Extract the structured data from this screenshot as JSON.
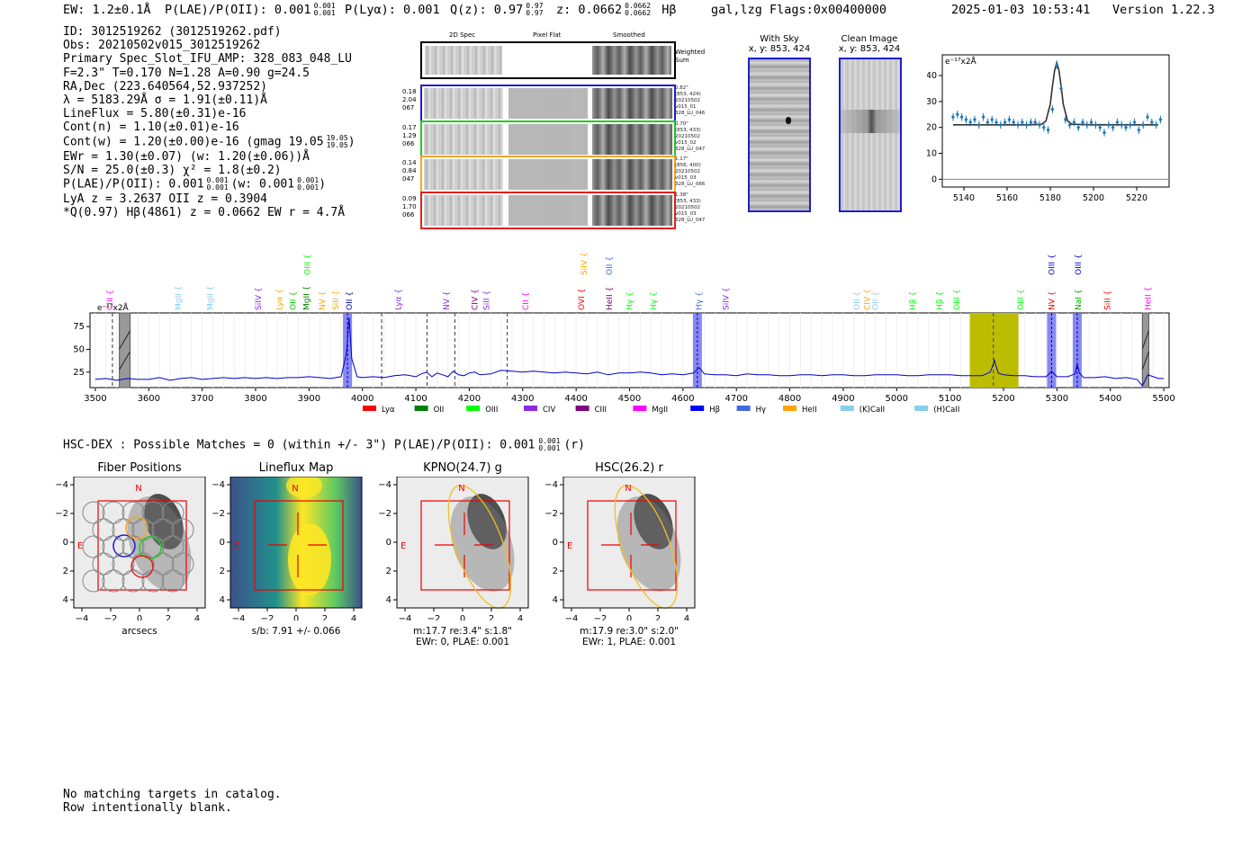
{
  "header": {
    "ew": "EW: 1.2±0.1Å",
    "plae_label": "P(LAE)/P(OII): 0.001",
    "plae_up": "0.001",
    "plae_dn": "0.001",
    "plya": "P(Lyα): 0.001",
    "qz_label": "Q(z): 0.97",
    "qz_up": "0.97",
    "qz_dn": "0.97",
    "z_label": "z: 0.0662",
    "z_up": "0.0662",
    "z_dn": "0.0662",
    "line": "Hβ",
    "flags_text": "gal,lzg  Flags:0x00400000",
    "timestamp": "2025-01-03 10:53:41",
    "version": "Version 1.22.3"
  },
  "info": {
    "lines": [
      "ID: 3012519262 (3012519262.pdf)",
      "Obs: 20210502v015_3012519262",
      "Primary Spec_Slot_IFU_AMP: 328_083_048_LU",
      "F=2.3\"  T=0.170  N=1.28  A=0.90  g=24.5",
      "RA,Dec (223.640564,52.937252)",
      "λ = 5183.29Å  σ = 1.91(±0.11)Å",
      "LineFlux = 5.80(±0.31)e-16",
      "Cont(n) = 1.10(±0.01)e-16"
    ],
    "contw": "Cont(w) = 1.20(±0.00)e-16 (gmag 19.05",
    "contw_up": "19.05",
    "contw_dn": "19.05",
    "contw_end": ")",
    "ewr": "EWr = 1.30(±0.07) (w: 1.20(±0.06))Å",
    "sn": "S/N = 25.0(±0.3)  χ² = 1.8(±0.2)",
    "plae2": "P(LAE)/P(OII): 0.001",
    "plae2_up": "0.001",
    "plae2_dn": "0.001",
    "plae2_w": "(w: 0.001",
    "plae2_wup": "0.001",
    "plae2_wdn": "0.001",
    "plae2_end": ")",
    "lya_z": "LyA z = 3.2637   OII z = 0.3904",
    "q_line": "*Q(0.97) Hβ(4861) z = 0.0662  EW r = 4.7Å"
  },
  "cutouts": {
    "col_2d": "2D Spec",
    "col_flat": "Pixel Flat",
    "col_smooth": "Smoothed",
    "weighted": "Weighted\nSum",
    "rows": [
      {
        "a": "0.18",
        "b": "2.04",
        "c": "067",
        "color": "#1f1fcc",
        "side": [
          "0.82\"",
          "(853, 424)",
          "20210502",
          "v015_01",
          "328_LU_046"
        ]
      },
      {
        "a": "0.17",
        "b": "1.29",
        "c": "066",
        "color": "#22cc22",
        "side": [
          "0.70\"",
          "(853, 433)",
          "20210502",
          "v015_02",
          "328_LU_047"
        ]
      },
      {
        "a": "0.14",
        "b": "0.84",
        "c": "047",
        "color": "#f5a623",
        "side": [
          "1.17\"",
          "(856, 400)",
          "20210502",
          "v015_03",
          "328_LU_066"
        ]
      },
      {
        "a": "0.09",
        "b": "1.70",
        "c": "066",
        "color": "#e02020",
        "side": [
          "1.38\"",
          "(853, 433)",
          "20210502",
          "v015_03",
          "328_LU_047"
        ]
      }
    ]
  },
  "sky": {
    "with_sky_title": "With Sky",
    "with_sky_xy": "x, y: 853, 424",
    "clean_title": "Clean Image",
    "clean_xy": "x, y: 853, 424"
  },
  "zoom": {
    "ylabel": "e⁻¹⁷x2Å",
    "xticks": [
      "5140",
      "5160",
      "5180",
      "5200",
      "5220"
    ],
    "yticks": [
      "0",
      "10",
      "20",
      "30",
      "40"
    ]
  },
  "full_spec": {
    "ylabel": "e⁻¹⁷x2Å",
    "xticks": [
      "3500",
      "3600",
      "3700",
      "3800",
      "3900",
      "4000",
      "4100",
      "4200",
      "4300",
      "4400",
      "4500",
      "4600",
      "4700",
      "4800",
      "4900",
      "5000",
      "5100",
      "5200",
      "5300",
      "5400",
      "5500"
    ],
    "yticks": [
      "25",
      "50",
      "75"
    ],
    "legend": [
      {
        "label": "Lyα",
        "color": "#ff0000"
      },
      {
        "label": "OII",
        "color": "#008000"
      },
      {
        "label": "OIII",
        "color": "#00ff00"
      },
      {
        "label": "CIV",
        "color": "#8a2be2"
      },
      {
        "label": "CIII",
        "color": "#800080"
      },
      {
        "label": "MgII",
        "color": "#ff00ff"
      },
      {
        "label": "Hβ",
        "color": "#0000ff"
      },
      {
        "label": "Hγ",
        "color": "#4169e1"
      },
      {
        "label": "HeII",
        "color": "#ffa500"
      },
      {
        "label": "(K)CaII",
        "color": "#87ceeb"
      },
      {
        "label": "(H)CaII",
        "color": "#87ceeb"
      }
    ],
    "lines": [
      {
        "label": "CIII",
        "x": 3527,
        "color": "#ff00ff",
        "row": 1
      },
      {
        "label": "MgII",
        "x": 3655,
        "color": "#87ceeb",
        "row": 1
      },
      {
        "label": "MgII",
        "x": 3715,
        "color": "#87ceeb",
        "row": 1
      },
      {
        "label": "SiIV",
        "x": 3805,
        "color": "#8a2be2",
        "row": 1
      },
      {
        "label": "Lyα",
        "x": 3845,
        "color": "#ffa500",
        "row": 1
      },
      {
        "label": "OII",
        "x": 3870,
        "color": "#00cc00",
        "row": 1
      },
      {
        "label": "MgII",
        "x": 3895,
        "color": "#008000",
        "row": 1
      },
      {
        "label": "NV",
        "x": 3925,
        "color": "#ffa500",
        "row": 1
      },
      {
        "label": "SiII",
        "x": 3950,
        "color": "#ffa500",
        "row": 1
      },
      {
        "label": "OIII",
        "x": 3897,
        "color": "#00ff00",
        "row": 0
      },
      {
        "label": "OII",
        "x": 3975,
        "color": "#0000cc",
        "row": 1
      },
      {
        "label": "Lyα",
        "x": 4067,
        "color": "#8a2be2",
        "row": 1
      },
      {
        "label": "NV",
        "x": 4157,
        "color": "#8a2be2",
        "row": 1
      },
      {
        "label": "CIV",
        "x": 4210,
        "color": "#800080",
        "row": 1
      },
      {
        "label": "SiII",
        "x": 4232,
        "color": "#8a2be2",
        "row": 1
      },
      {
        "label": "CII",
        "x": 4305,
        "color": "#ff00ff",
        "row": 1
      },
      {
        "label": "OVI",
        "x": 4410,
        "color": "#ff0000",
        "row": 1
      },
      {
        "label": "SiIV",
        "x": 4415,
        "color": "#ffa500",
        "row": 0
      },
      {
        "label": "HeII",
        "x": 4462,
        "color": "#800080",
        "row": 1
      },
      {
        "label": "OII",
        "x": 4462,
        "color": "#4169e1",
        "row": 0
      },
      {
        "label": "Hγ",
        "x": 4500,
        "color": "#00ff00",
        "row": 1
      },
      {
        "label": "Hγ",
        "x": 4545,
        "color": "#00ff00",
        "row": 1
      },
      {
        "label": "Hγ",
        "x": 4630,
        "color": "#4169e1",
        "row": 1
      },
      {
        "label": "SiIV",
        "x": 4680,
        "color": "#8a2be2",
        "row": 1
      },
      {
        "label": "OII",
        "x": 4925,
        "color": "#87ceeb",
        "row": 1
      },
      {
        "label": "CIV",
        "x": 4945,
        "color": "#ffa500",
        "row": 1
      },
      {
        "label": "OII",
        "x": 4960,
        "color": "#87ceeb",
        "row": 1
      },
      {
        "label": "Hβ",
        "x": 5030,
        "color": "#00ff00",
        "row": 1
      },
      {
        "label": "Hβ",
        "x": 5080,
        "color": "#00ff00",
        "row": 1
      },
      {
        "label": "OIII",
        "x": 5112,
        "color": "#00ff00",
        "row": 1
      },
      {
        "label": "OIII",
        "x": 5232,
        "color": "#00ff00",
        "row": 1
      },
      {
        "label": "NV",
        "x": 5290,
        "color": "#ff0000",
        "row": 1
      },
      {
        "label": "NaI",
        "x": 5340,
        "color": "#00aa00",
        "row": 1
      },
      {
        "label": "OIII",
        "x": 5290,
        "color": "#0000cc",
        "row": 0
      },
      {
        "label": "OIII",
        "x": 5340,
        "color": "#0000cc",
        "row": 0
      },
      {
        "label": "SiII",
        "x": 5395,
        "color": "#ff0000",
        "row": 1
      },
      {
        "label": "HeII",
        "x": 5470,
        "color": "#ff00ff",
        "row": 1
      }
    ]
  },
  "hsc": {
    "title": "HSC-DEX : Possible Matches = 0 (within +/- 3\")  P(LAE)/P(OII): 0.001",
    "title_up": "0.001",
    "title_dn": "0.001",
    "title_end": "(r)"
  },
  "thumbs": [
    {
      "title": "Fiber Positions",
      "caption1": "arcsecs",
      "caption2": "",
      "caption3": ""
    },
    {
      "title": "Lineflux Map",
      "caption1": "s/b: 7.91 +/- 0.066",
      "caption2": "",
      "caption3": ""
    },
    {
      "title": "KPNO(24.7) g",
      "caption1": "m:17.7  re:3.4\"  s:1.8\"",
      "caption2": "EWr: 0, PLAE: 0.001",
      "caption3": ""
    },
    {
      "title": "HSC(26.2) r",
      "caption1": "m:17.9  re:3.0\"  s:2.0\"",
      "caption2": "EWr: 1, PLAE: 0.001",
      "caption3": ""
    }
  ],
  "thumb_axis": {
    "ticks": [
      "−4",
      "−2",
      "0",
      "2",
      "4"
    ],
    "n": "N",
    "e": "E"
  },
  "footer": {
    "line1": "No matching targets in catalog.",
    "line2": "Row intentionally blank."
  },
  "chart_data": [
    {
      "type": "line",
      "title": "",
      "xlabel": "",
      "ylabel": "e⁻¹⁷x2Å",
      "xlim": [
        5130,
        5235
      ],
      "ylim": [
        -3,
        48
      ],
      "series": [
        {
          "x": [
            5135,
            5137,
            5139,
            5141,
            5143,
            5145,
            5147,
            5149,
            5151,
            5153,
            5155,
            5157,
            5159,
            5161,
            5163,
            5165,
            5167,
            5169,
            5171,
            5173,
            5175,
            5177,
            5179,
            5181,
            5183,
            5185,
            5187,
            5189,
            5191,
            5193,
            5195,
            5197,
            5199,
            5201,
            5203,
            5205,
            5207,
            5209,
            5211,
            5213,
            5215,
            5217,
            5219,
            5221,
            5223,
            5225,
            5227,
            5229,
            5231
          ],
          "y": [
            24,
            25,
            24,
            23,
            22,
            23,
            21,
            24,
            22,
            23,
            22,
            21,
            22,
            23,
            22,
            21,
            22,
            21,
            22,
            22,
            21,
            20,
            19,
            27,
            44,
            35,
            23,
            21,
            22,
            20,
            22,
            21,
            22,
            21,
            20,
            18,
            21,
            20,
            22,
            21,
            20,
            21,
            22,
            19,
            21,
            24,
            22,
            21,
            23
          ]
        },
        {
          "x": [
            5135,
            5170,
            5176,
            5178,
            5180,
            5181,
            5182,
            5183,
            5184,
            5185,
            5186,
            5188,
            5190,
            5200,
            5230
          ],
          "y": [
            21,
            21,
            21.2,
            22.5,
            29,
            36,
            42,
            45,
            42,
            36,
            29,
            22.5,
            21.2,
            21,
            21
          ]
        }
      ]
    },
    {
      "type": "line",
      "title": "",
      "xlabel": "",
      "ylabel": "e⁻¹⁷x2Å",
      "xlim": [
        3490,
        5510
      ],
      "ylim": [
        8,
        90
      ],
      "series": [
        {
          "x": [
            3500,
            3520,
            3540,
            3560,
            3580,
            3600,
            3620,
            3640,
            3660,
            3680,
            3700,
            3720,
            3740,
            3760,
            3780,
            3800,
            3820,
            3840,
            3860,
            3880,
            3900,
            3920,
            3940,
            3960,
            3970,
            3975,
            3980,
            3990,
            4000,
            4020,
            4040,
            4060,
            4080,
            4100,
            4110,
            4120,
            4130,
            4140,
            4150,
            4160,
            4170,
            4180,
            4190,
            4200,
            4210,
            4220,
            4240,
            4260,
            4280,
            4300,
            4320,
            4340,
            4360,
            4380,
            4400,
            4420,
            4440,
            4460,
            4480,
            4500,
            4520,
            4540,
            4560,
            4580,
            4600,
            4620,
            4630,
            4640,
            4660,
            4680,
            4700,
            4720,
            4740,
            4760,
            4780,
            4800,
            4820,
            4840,
            4860,
            4880,
            4900,
            4920,
            4940,
            4960,
            4980,
            5000,
            5020,
            5040,
            5060,
            5080,
            5100,
            5120,
            5140,
            5160,
            5175,
            5180,
            5183,
            5186,
            5190,
            5200,
            5220,
            5240,
            5260,
            5280,
            5290,
            5300,
            5320,
            5334,
            5338,
            5342,
            5350,
            5370,
            5390,
            5410,
            5430,
            5450,
            5460,
            5470,
            5490,
            5500
          ],
          "y": [
            17,
            18,
            16,
            18,
            17,
            17,
            19,
            16,
            18,
            19,
            17,
            18,
            19,
            18,
            19,
            18,
            19,
            18,
            19,
            19,
            20,
            19,
            18,
            20,
            45,
            85,
            40,
            20,
            19,
            20,
            19,
            21,
            22,
            20,
            23,
            25,
            20,
            24,
            22,
            20,
            26,
            22,
            21,
            24,
            25,
            22,
            23,
            27,
            26,
            25,
            26,
            25,
            24,
            25,
            24,
            23,
            25,
            22,
            24,
            24,
            25,
            24,
            22,
            23,
            22,
            24,
            30,
            23,
            22,
            22,
            21,
            23,
            22,
            22,
            21,
            21,
            22,
            22,
            21,
            22,
            22,
            21,
            21,
            22,
            22,
            22,
            21,
            21,
            22,
            22,
            22,
            21,
            21,
            21,
            25,
            32,
            38,
            32,
            24,
            22,
            21,
            21,
            20,
            20,
            26,
            20,
            20,
            23,
            34,
            24,
            19,
            19,
            20,
            18,
            19,
            17,
            10,
            22,
            18,
            18
          ]
        }
      ],
      "highlight_bands": [
        3972,
        4627,
        5290,
        5338
      ],
      "yellow_band": [
        5137,
        5228
      ],
      "dashed_lines": [
        3532,
        4036,
        4121,
        4173,
        4271,
        5181
      ],
      "gray_boxes": [
        [
          3545,
          3565
        ],
        [
          5460,
          5472
        ]
      ]
    }
  ]
}
